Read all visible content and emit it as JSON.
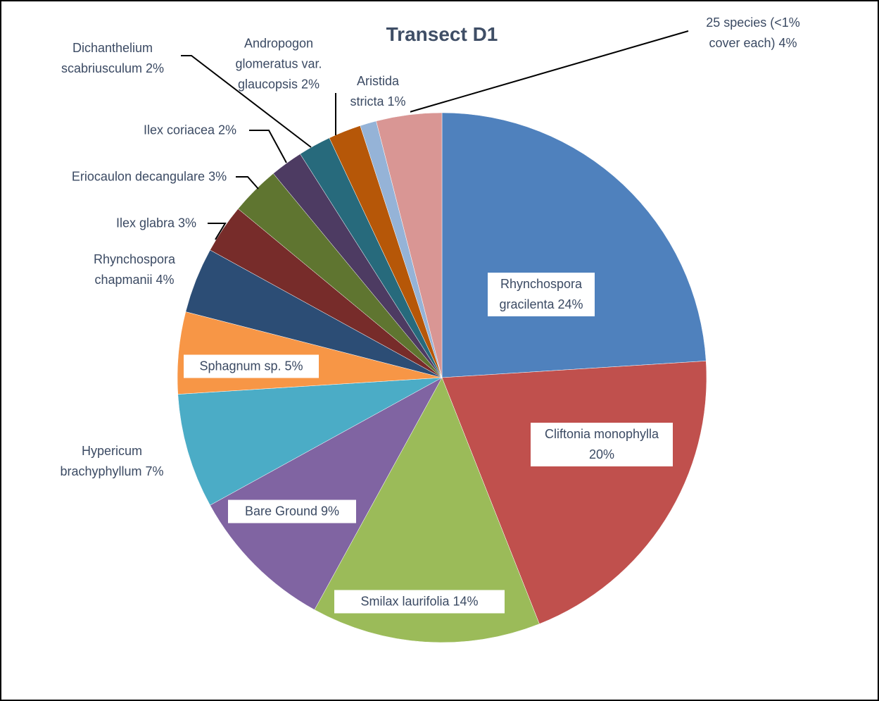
{
  "chart_data": {
    "type": "pie",
    "title": "Transect D1",
    "categories": [
      "Rhynchospora gracilenta",
      "Cliftonia monophylla",
      "Smilax laurifolia",
      "Bare Ground",
      "Hypericum brachyphyllum",
      "Sphagnum sp.",
      "Rhynchospora chapmanii",
      "Ilex glabra",
      "Eriocaulon decangulare",
      "Ilex coriacea",
      "Dichanthelium scabriusculum",
      "Andropogon glomeratus var. glaucopsis",
      "Aristida stricta",
      "25 species (<1% cover each)"
    ],
    "values": [
      24,
      20,
      14,
      9,
      7,
      5,
      4,
      3,
      3,
      2,
      2,
      2,
      1,
      4
    ],
    "value_labels": [
      "24%",
      "20%",
      "14%",
      "9%",
      "7%",
      "5%",
      "4%",
      "3%",
      "3%",
      "2%",
      "2%",
      "2%",
      "1%",
      "4%"
    ],
    "colors": [
      "#4f81bd",
      "#c0504d",
      "#9bbb59",
      "#8064a2",
      "#4bacc6",
      "#f79646",
      "#2c4d75",
      "#772c2a",
      "#5f7530",
      "#4d3b62",
      "#276a7c",
      "#b65708",
      "#95b3d7",
      "#d99694"
    ]
  }
}
